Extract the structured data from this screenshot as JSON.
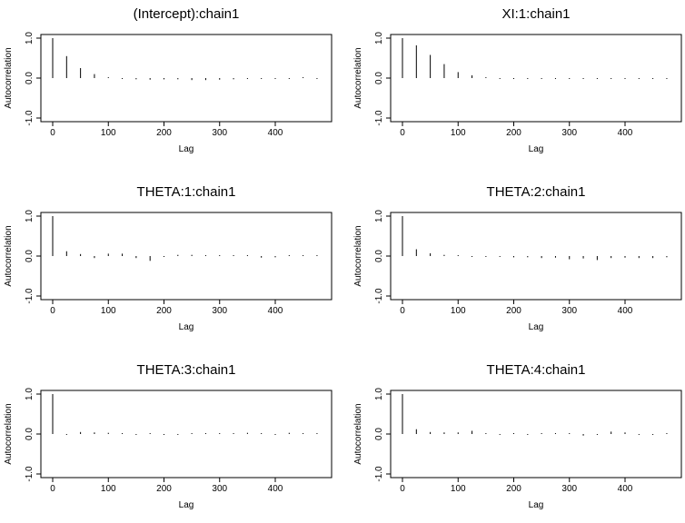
{
  "chart_data": [
    {
      "type": "bar",
      "title": "(Intercept):chain1",
      "xlabel": "Lag",
      "ylabel": "Autocorrelation",
      "xlim": [
        0,
        480
      ],
      "ylim": [
        -1,
        1
      ],
      "xticks": [
        "0",
        "100",
        "200",
        "300",
        "400"
      ],
      "yticks": [
        "-1.0",
        "0.0",
        "1.0"
      ],
      "x": [
        0,
        25,
        50,
        75,
        100,
        125,
        150,
        175,
        200,
        225,
        250,
        275,
        300,
        325,
        350,
        375,
        400,
        425,
        450,
        475
      ],
      "values": [
        1.0,
        0.55,
        0.25,
        0.1,
        0.02,
        -0.01,
        -0.03,
        -0.04,
        -0.03,
        -0.03,
        -0.05,
        -0.05,
        -0.04,
        -0.03,
        -0.02,
        -0.02,
        -0.02,
        -0.01,
        0.01,
        -0.01
      ]
    },
    {
      "type": "bar",
      "title": "XI:1:chain1",
      "xlabel": "Lag",
      "ylabel": "Autocorrelation",
      "xlim": [
        0,
        480
      ],
      "ylim": [
        -1,
        1
      ],
      "xticks": [
        "0",
        "100",
        "200",
        "300",
        "400"
      ],
      "yticks": [
        "-1.0",
        "0.0",
        "1.0"
      ],
      "x": [
        0,
        25,
        50,
        75,
        100,
        125,
        150,
        175,
        200,
        225,
        250,
        275,
        300,
        325,
        350,
        375,
        400,
        425,
        450,
        475
      ],
      "values": [
        1.0,
        0.82,
        0.58,
        0.35,
        0.15,
        0.07,
        0.02,
        -0.01,
        -0.02,
        -0.02,
        -0.02,
        -0.02,
        -0.02,
        -0.01,
        -0.01,
        -0.01,
        -0.01,
        -0.01,
        -0.01,
        -0.01
      ]
    },
    {
      "type": "bar",
      "title": "THETA:1:chain1",
      "xlabel": "Lag",
      "ylabel": "Autocorrelation",
      "xlim": [
        0,
        480
      ],
      "ylim": [
        -1,
        1
      ],
      "xticks": [
        "0",
        "100",
        "200",
        "300",
        "400"
      ],
      "yticks": [
        "-1.0",
        "0.0",
        "1.0"
      ],
      "x": [
        0,
        25,
        50,
        75,
        100,
        125,
        150,
        175,
        200,
        225,
        250,
        275,
        300,
        325,
        350,
        375,
        400,
        425,
        450,
        475
      ],
      "values": [
        1.0,
        0.12,
        0.05,
        -0.05,
        0.06,
        0.06,
        -0.05,
        -0.12,
        -0.01,
        0.03,
        0.03,
        0.02,
        0.02,
        0.01,
        0.01,
        -0.04,
        -0.03,
        0.01,
        0.02,
        0.01
      ]
    },
    {
      "type": "bar",
      "title": "THETA:2:chain1",
      "xlabel": "Lag",
      "ylabel": "Autocorrelation",
      "xlim": [
        0,
        480
      ],
      "ylim": [
        -1,
        1
      ],
      "xticks": [
        "0",
        "100",
        "200",
        "300",
        "400"
      ],
      "yticks": [
        "-1.0",
        "0.0",
        "1.0"
      ],
      "x": [
        0,
        25,
        50,
        75,
        100,
        125,
        150,
        175,
        200,
        225,
        250,
        275,
        300,
        325,
        350,
        375,
        400,
        425,
        450,
        475
      ],
      "values": [
        1.0,
        0.17,
        0.07,
        0.03,
        0.01,
        -0.02,
        -0.02,
        -0.02,
        -0.03,
        -0.03,
        -0.05,
        -0.04,
        -0.08,
        -0.06,
        -0.1,
        -0.05,
        -0.04,
        -0.05,
        -0.05,
        -0.03
      ]
    },
    {
      "type": "bar",
      "title": "THETA:3:chain1",
      "xlabel": "Lag",
      "ylabel": "Autocorrelation",
      "xlim": [
        0,
        480
      ],
      "ylim": [
        -1,
        1
      ],
      "xticks": [
        "0",
        "100",
        "200",
        "300",
        "400"
      ],
      "yticks": [
        "-1.0",
        "0.0",
        "1.0"
      ],
      "x": [
        0,
        25,
        50,
        75,
        100,
        125,
        150,
        175,
        200,
        225,
        250,
        275,
        300,
        325,
        350,
        375,
        400,
        425,
        450,
        475
      ],
      "values": [
        1.0,
        -0.02,
        0.05,
        0.04,
        0.03,
        0.01,
        -0.01,
        0.01,
        -0.02,
        -0.01,
        0.01,
        0.02,
        0.01,
        0.01,
        0.03,
        0.01,
        -0.02,
        0.03,
        0.01,
        0.01
      ]
    },
    {
      "type": "bar",
      "title": "THETA:4:chain1",
      "xlabel": "Lag",
      "ylabel": "Autocorrelation",
      "xlim": [
        0,
        480
      ],
      "ylim": [
        -1,
        1
      ],
      "xticks": [
        "0",
        "100",
        "200",
        "300",
        "400"
      ],
      "yticks": [
        "-1.0",
        "0.0",
        "1.0"
      ],
      "x": [
        0,
        25,
        50,
        75,
        100,
        125,
        150,
        175,
        200,
        225,
        250,
        275,
        300,
        325,
        350,
        375,
        400,
        425,
        450,
        475
      ],
      "values": [
        1.0,
        0.12,
        0.05,
        0.04,
        0.04,
        0.08,
        0.01,
        -0.01,
        0.01,
        -0.01,
        0.02,
        0.02,
        0.01,
        -0.04,
        -0.02,
        0.06,
        0.04,
        -0.01,
        -0.02,
        0.01
      ]
    }
  ]
}
